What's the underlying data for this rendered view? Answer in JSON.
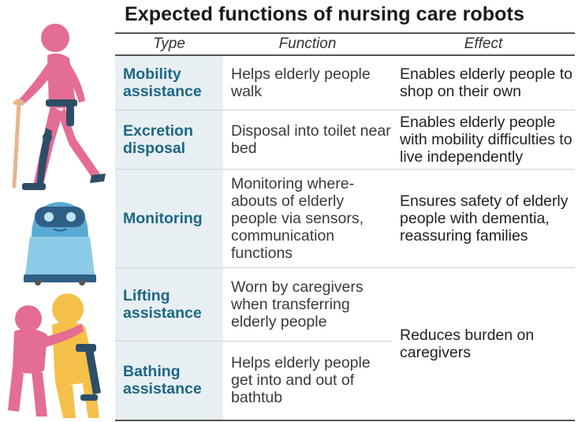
{
  "title": "Expected functions of nursing care robots",
  "headers": {
    "type": "Type",
    "function": "Function",
    "effect": "Effect"
  },
  "rows": [
    {
      "type": "Mobility assistance",
      "function": "Helps elderly people walk",
      "effect": "Enables elderly people to shop on their own"
    },
    {
      "type": "Excretion disposal",
      "function": "Disposal into toilet near bed",
      "effect": "Enables elderly people with mobility difficulties to live independently"
    },
    {
      "type": "Monitoring",
      "function": "Monitoring where-abouts of elderly people via sensors, communication functions",
      "effect": "Ensures safety of elderly people with dementia, reassuring families"
    },
    {
      "type": "Lifting assistance",
      "function": "Worn by caregivers when transferring elderly people",
      "effect": "Reduces burden on caregivers"
    },
    {
      "type": "Bathing assistance",
      "function": "Helps elderly people get into and out of bathtub",
      "effect": ""
    }
  ],
  "colors": {
    "type_text": "#1b6786",
    "type_bg": "#e8eff2",
    "figure_pink": "#e46d93",
    "figure_yellow": "#f5c04a",
    "robot_blue": "#5aa9d3",
    "exo_navy": "#2e4e68"
  },
  "icons": [
    "walking-assist-figure-icon",
    "monitoring-robot-icon",
    "lifting-assist-figure-icon"
  ]
}
